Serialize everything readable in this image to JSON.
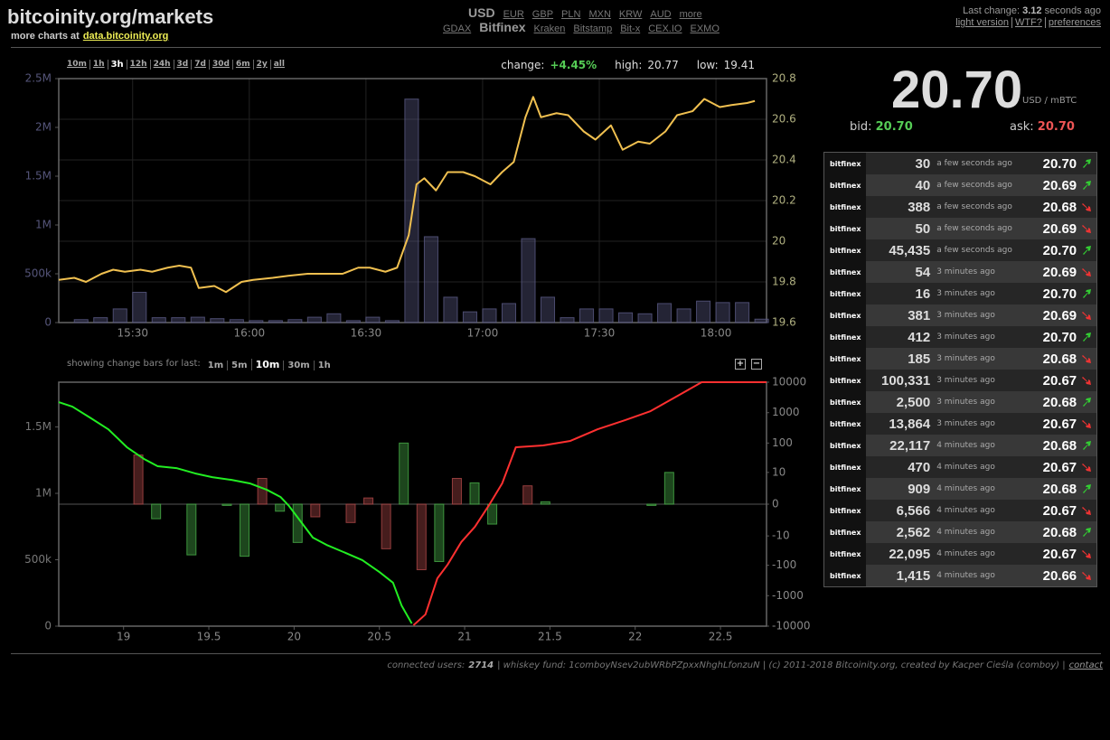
{
  "header": {
    "title": "bitcoinity.org/markets",
    "subtitle": "more charts at",
    "subtitle_link": "data.bitcoinity.org"
  },
  "currencies": [
    {
      "label": "USD",
      "selected": true
    },
    {
      "label": "EUR"
    },
    {
      "label": "GBP"
    },
    {
      "label": "PLN"
    },
    {
      "label": "MXN"
    },
    {
      "label": "KRW"
    },
    {
      "label": "AUD"
    },
    {
      "label": "more"
    }
  ],
  "exchanges": [
    {
      "label": "GDAX"
    },
    {
      "label": "Bitfinex",
      "selected": true
    },
    {
      "label": "Kraken"
    },
    {
      "label": "Bitstamp"
    },
    {
      "label": "Bit-x"
    },
    {
      "label": "CEX.IO"
    },
    {
      "label": "EXMO"
    }
  ],
  "status": {
    "label": "Last change:",
    "value": "3.12",
    "unit": "seconds ago",
    "links": [
      "light version",
      "WTF?",
      "preferences"
    ]
  },
  "price_chart_controls": {
    "timespans": [
      {
        "label": "10m"
      },
      {
        "label": "1h"
      },
      {
        "label": "3h",
        "selected": true
      },
      {
        "label": "12h"
      },
      {
        "label": "24h"
      },
      {
        "label": "3d"
      },
      {
        "label": "7d"
      },
      {
        "label": "30d"
      },
      {
        "label": "6m"
      },
      {
        "label": "2y"
      },
      {
        "label": "all"
      }
    ],
    "change_label": "change:",
    "change": "+4.45%",
    "high_label": "high:",
    "high": "20.77",
    "low_label": "low:",
    "low": "19.41"
  },
  "depth_chart_controls": {
    "label": "showing change bars for last:",
    "periods": [
      {
        "label": "1m"
      },
      {
        "label": "5m"
      },
      {
        "label": "10m",
        "selected": true
      },
      {
        "label": "30m"
      },
      {
        "label": "1h"
      }
    ],
    "zoom": [
      "+",
      "−"
    ]
  },
  "ticker": {
    "price": "20.70",
    "unit": "USD / mBTC",
    "bid_label": "bid:",
    "bid": "20.70",
    "ask_label": "ask:",
    "ask": "20.70"
  },
  "trades": [
    {
      "exchange": "bitfinex",
      "amount": "30",
      "time": "a few seconds ago",
      "price": "20.70",
      "direction": "up"
    },
    {
      "exchange": "bitfinex",
      "amount": "40",
      "time": "a few seconds ago",
      "price": "20.69",
      "direction": "up"
    },
    {
      "exchange": "bitfinex",
      "amount": "388",
      "time": "a few seconds ago",
      "price": "20.68",
      "direction": "down"
    },
    {
      "exchange": "bitfinex",
      "amount": "50",
      "time": "a few seconds ago",
      "price": "20.69",
      "direction": "down"
    },
    {
      "exchange": "bitfinex",
      "amount": "45,435",
      "time": "a few seconds ago",
      "price": "20.70",
      "direction": "up"
    },
    {
      "exchange": "bitfinex",
      "amount": "54",
      "time": "3 minutes ago",
      "price": "20.69",
      "direction": "down"
    },
    {
      "exchange": "bitfinex",
      "amount": "16",
      "time": "3 minutes ago",
      "price": "20.70",
      "direction": "up"
    },
    {
      "exchange": "bitfinex",
      "amount": "381",
      "time": "3 minutes ago",
      "price": "20.69",
      "direction": "down"
    },
    {
      "exchange": "bitfinex",
      "amount": "412",
      "time": "3 minutes ago",
      "price": "20.70",
      "direction": "up"
    },
    {
      "exchange": "bitfinex",
      "amount": "185",
      "time": "3 minutes ago",
      "price": "20.68",
      "direction": "down"
    },
    {
      "exchange": "bitfinex",
      "amount": "100,331",
      "time": "3 minutes ago",
      "price": "20.67",
      "direction": "down"
    },
    {
      "exchange": "bitfinex",
      "amount": "2,500",
      "time": "3 minutes ago",
      "price": "20.68",
      "direction": "up"
    },
    {
      "exchange": "bitfinex",
      "amount": "13,864",
      "time": "3 minutes ago",
      "price": "20.67",
      "direction": "down"
    },
    {
      "exchange": "bitfinex",
      "amount": "22,117",
      "time": "4 minutes ago",
      "price": "20.68",
      "direction": "up"
    },
    {
      "exchange": "bitfinex",
      "amount": "470",
      "time": "4 minutes ago",
      "price": "20.67",
      "direction": "down"
    },
    {
      "exchange": "bitfinex",
      "amount": "909",
      "time": "4 minutes ago",
      "price": "20.68",
      "direction": "up"
    },
    {
      "exchange": "bitfinex",
      "amount": "6,566",
      "time": "4 minutes ago",
      "price": "20.67",
      "direction": "down"
    },
    {
      "exchange": "bitfinex",
      "amount": "2,562",
      "time": "4 minutes ago",
      "price": "20.68",
      "direction": "up"
    },
    {
      "exchange": "bitfinex",
      "amount": "22,095",
      "time": "4 minutes ago",
      "price": "20.67",
      "direction": "down"
    },
    {
      "exchange": "bitfinex",
      "amount": "1,415",
      "time": "4 minutes ago",
      "price": "20.66",
      "direction": "down"
    }
  ],
  "footer": {
    "users_label": "connected users:",
    "users": "2714",
    "text": "| whiskey fund: 1comboyNsev2ubWRbPZpxxNhghLfonzuN | (c) 2011-2018 Bitcoinity.org, created by Kacper Cieśla (comboy) |",
    "contact": "contact"
  },
  "chart_data": [
    {
      "type": "combo",
      "grid": true,
      "xlim": [
        911,
        1093
      ],
      "xticks": [
        {
          "value": 930,
          "label": "15:30"
        },
        {
          "value": 960,
          "label": "16:00"
        },
        {
          "value": 990,
          "label": "16:30"
        },
        {
          "value": 1020,
          "label": "17:00"
        },
        {
          "value": 1050,
          "label": "17:30"
        },
        {
          "value": 1080,
          "label": "18:00"
        }
      ],
      "ylim": [
        0,
        2500000
      ],
      "yticks": [
        0,
        {
          "value": 500000,
          "label": "500k"
        },
        {
          "value": 1000000,
          "label": "1M"
        },
        {
          "value": 1500000,
          "label": "1.5M"
        },
        {
          "value": 2000000,
          "label": "2M"
        },
        {
          "value": 2500000,
          "label": "2.5M"
        }
      ],
      "y2lim": [
        19.6,
        20.8
      ],
      "y2ticks": [
        19.6,
        19.8,
        20,
        20.2,
        20.4,
        20.6,
        20.8
      ],
      "series": [
        {
          "type": "bar",
          "color": "#5a5a85",
          "x": [
            915,
            920,
            925,
            930,
            935,
            940,
            945,
            950,
            955,
            960,
            965,
            970,
            975,
            980,
            985,
            990,
            995,
            1000,
            1005,
            1010,
            1015,
            1020,
            1025,
            1030,
            1035,
            1040,
            1045,
            1050,
            1055,
            1060,
            1065,
            1070,
            1075,
            1080,
            1085,
            1090
          ],
          "values": [
            30000,
            50000,
            140000,
            310000,
            50000,
            50000,
            55000,
            40000,
            30000,
            20000,
            20000,
            30000,
            55000,
            90000,
            20000,
            55000,
            20000,
            2290000,
            880000,
            260000,
            110000,
            140000,
            195000,
            860000,
            260000,
            50000,
            140000,
            140000,
            100000,
            90000,
            195000,
            140000,
            220000,
            205000,
            205000,
            35000
          ]
        },
        {
          "type": "line",
          "axis": "y2",
          "color": "#f0c050",
          "x": [
            911,
            915,
            918,
            922,
            925,
            928,
            932,
            935,
            939,
            942,
            945,
            947,
            951,
            954,
            958,
            961,
            966,
            970,
            975,
            980,
            984,
            988,
            991,
            995,
            998,
            1001,
            1003,
            1005,
            1008,
            1011,
            1015,
            1018,
            1022,
            1025,
            1028,
            1031,
            1033,
            1035,
            1039,
            1042,
            1046,
            1049,
            1053,
            1056,
            1060,
            1063,
            1067,
            1070,
            1074,
            1077,
            1081,
            1084,
            1088,
            1090
          ],
          "values": [
            19.81,
            19.82,
            19.8,
            19.84,
            19.86,
            19.85,
            19.86,
            19.85,
            19.87,
            19.88,
            19.87,
            19.77,
            19.78,
            19.75,
            19.8,
            19.81,
            19.82,
            19.83,
            19.84,
            19.84,
            19.84,
            19.87,
            19.87,
            19.85,
            19.87,
            20.03,
            20.28,
            20.31,
            20.25,
            20.34,
            20.34,
            20.32,
            20.28,
            20.34,
            20.39,
            20.61,
            20.71,
            20.61,
            20.63,
            20.62,
            20.54,
            20.5,
            20.57,
            20.45,
            20.49,
            20.48,
            20.54,
            20.62,
            20.64,
            20.7,
            20.66,
            20.67,
            20.68,
            20.69
          ]
        }
      ]
    },
    {
      "type": "combo",
      "grid": false,
      "xlim": [
        18.62,
        22.77
      ],
      "xticks": [
        19,
        19.5,
        20,
        20.5,
        21,
        21.5,
        22,
        22.5
      ],
      "ylim": [
        0,
        1837000
      ],
      "yticks": [
        0,
        {
          "value": 500000,
          "label": "500k"
        },
        {
          "value": 1000000,
          "label": "1M"
        },
        {
          "value": 1500000,
          "label": "1.5M"
        }
      ],
      "y2lim": [
        -10000,
        10000
      ],
      "y2scale": "symlog",
      "y2ticks": [
        10000,
        1000,
        100,
        10,
        0,
        -10,
        -100,
        -1000,
        -10000
      ],
      "series": [
        {
          "type": "bar",
          "axis": "y2",
          "color": "#b04848",
          "values": [
            null,
            null,
            null,
            null,
            40,
            null,
            null,
            null,
            null,
            null,
            null,
            6,
            null,
            null,
            -1.6,
            null,
            -3,
            0.6,
            -28,
            null,
            -140,
            null,
            6,
            null,
            null,
            null,
            3,
            null,
            null,
            null,
            null,
            null,
            null,
            null,
            null,
            null,
            null,
            null,
            null,
            null
          ]
        },
        {
          "type": "bar",
          "axis": "y2",
          "color": "#48b048",
          "values": [
            null,
            null,
            null,
            null,
            null,
            -2,
            null,
            -45,
            null,
            -0.1,
            -50,
            null,
            -0.7,
            -17,
            null,
            null,
            null,
            null,
            null,
            100,
            null,
            -75,
            null,
            4,
            -3.5,
            null,
            null,
            0.2,
            null,
            null,
            null,
            null,
            null,
            -0.1,
            10,
            null,
            null,
            null,
            null,
            null
          ]
        },
        {
          "type": "line",
          "color": "#22ee22",
          "x": [
            18.62,
            18.7,
            18.81,
            18.91,
            19.02,
            19.12,
            19.2,
            19.31,
            19.42,
            19.52,
            19.63,
            19.74,
            19.84,
            19.92,
            19.97,
            20.03,
            20.11,
            20.19,
            20.29,
            20.4,
            20.5,
            20.58,
            20.63,
            20.69
          ],
          "values": [
            1687000,
            1653000,
            1565000,
            1483000,
            1347000,
            1259000,
            1204000,
            1190000,
            1150000,
            1122000,
            1102000,
            1075000,
            1027000,
            973000,
            905000,
            803000,
            667000,
            612000,
            558000,
            497000,
            408000,
            327000,
            156000,
            20000
          ]
        },
        {
          "type": "line",
          "color": "#ff3030",
          "x": [
            20.7,
            20.77,
            20.84,
            20.9,
            20.98,
            21.06,
            21.14,
            21.22,
            21.3,
            21.46,
            21.62,
            21.78,
            21.94,
            22.09,
            22.25,
            22.39,
            22.77
          ],
          "values": [
            7000,
            88000,
            360000,
            463000,
            633000,
            748000,
            905000,
            1075000,
            1347000,
            1361000,
            1395000,
            1483000,
            1551000,
            1619000,
            1735000,
            1837000,
            1837000
          ]
        }
      ]
    }
  ]
}
